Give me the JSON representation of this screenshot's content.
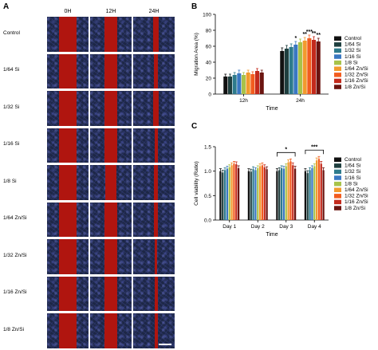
{
  "panels": {
    "a": "A",
    "b": "B",
    "c": "C"
  },
  "panel_a": {
    "columns": [
      "0H",
      "12H",
      "24H"
    ],
    "rows": [
      "Control",
      "1/64 Si",
      "1/32 Si",
      "1/16 Si",
      "1/8 Si",
      "1/64 Zn/Si",
      "1/32 Zn/Si",
      "1/16  Zn/Si",
      "1/8  Zn/Si"
    ],
    "gap_fraction": {
      "0H": [
        0.42,
        0.42,
        0.42,
        0.42,
        0.42,
        0.42,
        0.42,
        0.42,
        0.42
      ],
      "12H": [
        0.3,
        0.3,
        0.32,
        0.3,
        0.28,
        0.3,
        0.3,
        0.3,
        0.3
      ],
      "24H": [
        0.14,
        0.1,
        0.12,
        0.08,
        0.1,
        0.09,
        0.07,
        0.08,
        0.08
      ]
    },
    "colors": {
      "cells": "#1d2746",
      "gap": "#b0150f",
      "scalebar": "#ffffff"
    }
  },
  "chart_data": [
    {
      "panel": "B",
      "type": "bar",
      "ylabel": "Migration Area (%)",
      "xlabel": "Time",
      "ylim": [
        0,
        100
      ],
      "yticks": [
        0,
        20,
        40,
        60,
        80,
        100
      ],
      "categories": [
        "12h",
        "24h"
      ],
      "series": [
        {
          "name": "Control",
          "color": "#111111",
          "values": [
            22,
            54
          ],
          "err": [
            3,
            4
          ]
        },
        {
          "name": "1/64 Si",
          "color": "#1f3f3f",
          "values": [
            22,
            57
          ],
          "err": [
            3,
            4
          ]
        },
        {
          "name": "1/32 Si",
          "color": "#2e7b8c",
          "values": [
            24,
            59
          ],
          "err": [
            3,
            4
          ]
        },
        {
          "name": "1/16 Si",
          "color": "#3a78c2",
          "values": [
            26,
            62
          ],
          "err": [
            4,
            4
          ]
        },
        {
          "name": "1/8 Si",
          "color": "#a8c34a",
          "values": [
            24,
            65
          ],
          "err": [
            3,
            4
          ]
        },
        {
          "name": "1/64 Zn/Si",
          "color": "#f29a2e",
          "values": [
            27,
            67
          ],
          "err": [
            3,
            4
          ]
        },
        {
          "name": "1/32 Zn/Si",
          "color": "#f25c1f",
          "values": [
            25,
            70
          ],
          "err": [
            3,
            4
          ]
        },
        {
          "name": "1/16 Zn/Si",
          "color": "#c42a1c",
          "values": [
            29,
            68
          ],
          "err": [
            3,
            4
          ]
        },
        {
          "name": "1/8  Zn/Si",
          "color": "#6b1410",
          "values": [
            27,
            66
          ],
          "err": [
            3,
            4
          ]
        }
      ],
      "annotations": [
        {
          "category": "24h",
          "series_index": 3,
          "text": "*"
        },
        {
          "category": "24h",
          "series_index": 5,
          "text": "**"
        },
        {
          "category": "24h",
          "series_index": 6,
          "text": "***"
        },
        {
          "category": "24h",
          "series_index": 7,
          "text": "**"
        },
        {
          "category": "24h",
          "series_index": 8,
          "text": "**"
        }
      ]
    },
    {
      "panel": "C",
      "type": "bar",
      "ylabel": "Cell viability (Ratio)",
      "xlabel": "Time",
      "ylim": [
        0,
        1.5
      ],
      "yticks": [
        0.0,
        0.5,
        1.0,
        1.5
      ],
      "categories": [
        "Day 1",
        "Day 2",
        "Day 3",
        "Day 4"
      ],
      "series": [
        {
          "name": "Control",
          "color": "#111111",
          "values": [
            1.0,
            1.0,
            1.0,
            1.0
          ],
          "err": [
            0.05,
            0.05,
            0.05,
            0.05
          ]
        },
        {
          "name": "1/64 Si",
          "color": "#1f3f3f",
          "values": [
            0.97,
            0.99,
            1.02,
            0.96
          ],
          "err": [
            0.05,
            0.05,
            0.05,
            0.05
          ]
        },
        {
          "name": "1/32 Si",
          "color": "#2e7b8c",
          "values": [
            1.02,
            1.04,
            1.06,
            1.02
          ],
          "err": [
            0.05,
            0.05,
            0.05,
            0.05
          ]
        },
        {
          "name": "1/16 Si",
          "color": "#3a78c2",
          "values": [
            1.05,
            1.02,
            1.05,
            1.06
          ],
          "err": [
            0.05,
            0.05,
            0.05,
            0.05
          ]
        },
        {
          "name": "1/8 Si",
          "color": "#a8c34a",
          "values": [
            1.08,
            1.06,
            1.1,
            1.1
          ],
          "err": [
            0.05,
            0.05,
            0.05,
            0.05
          ]
        },
        {
          "name": "1/64 Zn/Si",
          "color": "#f29a2e",
          "values": [
            1.12,
            1.1,
            1.18,
            1.22
          ],
          "err": [
            0.05,
            0.05,
            0.05,
            0.05
          ]
        },
        {
          "name": "1/32 Zn/Si",
          "color": "#f25c1f",
          "values": [
            1.15,
            1.12,
            1.2,
            1.25
          ],
          "err": [
            0.05,
            0.05,
            0.05,
            0.05
          ]
        },
        {
          "name": "1/16 Zn/Si",
          "color": "#c42a1c",
          "values": [
            1.14,
            1.08,
            1.12,
            1.15
          ],
          "err": [
            0.05,
            0.05,
            0.05,
            0.05
          ]
        },
        {
          "name": "1/8  Zn/Si",
          "color": "#6b1410",
          "values": [
            1.06,
            1.04,
            1.05,
            1.02
          ],
          "err": [
            0.05,
            0.05,
            0.05,
            0.05
          ]
        }
      ],
      "brackets": [
        {
          "category": "Day 3",
          "text": "*"
        },
        {
          "category": "Day 4",
          "text": "***"
        }
      ]
    }
  ]
}
